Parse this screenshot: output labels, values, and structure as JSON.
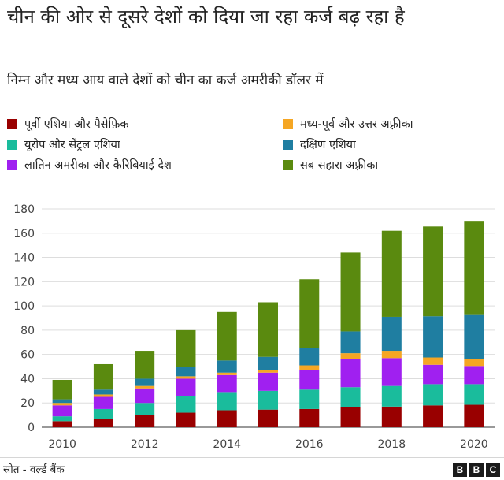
{
  "title": "चीन की ओर से दूसरे देशों को दिया जा रहा कर्ज बढ़ रहा है",
  "subtitle": "निम्न और मध्य आय वाले देशों को चीन का कर्ज अमरीकी डॉलर में",
  "source": "स्रोत - वर्ल्ड बैंक",
  "logo_letters": [
    "B",
    "B",
    "C"
  ],
  "chart_data": {
    "type": "bar",
    "stacked": true,
    "categories": [
      "2010",
      "2011",
      "2012",
      "2013",
      "2014",
      "2015",
      "2016",
      "2017",
      "2018",
      "2019",
      "2020"
    ],
    "x_tick_labels": [
      "2010",
      "2012",
      "2014",
      "2016",
      "2018",
      "2020"
    ],
    "ylim": [
      0,
      180
    ],
    "y_ticks": [
      0,
      20,
      40,
      60,
      80,
      100,
      120,
      140,
      160,
      180
    ],
    "grid": true,
    "legend_position": "top",
    "series": [
      {
        "name": "पूर्वी एशिया और पैसेफ़िक",
        "color": "#990000",
        "values": [
          5,
          7,
          10,
          12,
          14,
          14.5,
          15,
          16.5,
          17,
          18,
          18.5
        ]
      },
      {
        "name": "यूरोप और सेंट्रल एशिया",
        "color": "#1abc9c",
        "values": [
          4,
          8,
          10,
          14,
          15,
          15.5,
          16,
          16.5,
          17,
          17.5,
          17
        ]
      },
      {
        "name": "लातिन अमरीका और कैरिबियाई देश",
        "color": "#a020f0",
        "values": [
          9,
          10,
          12,
          14,
          14,
          15,
          16,
          23,
          23,
          16,
          15
        ]
      },
      {
        "name": "मध्य-पूर्व और उत्तर अफ़्रीका",
        "color": "#f5a623",
        "values": [
          2,
          2,
          2,
          2,
          2,
          2,
          4,
          5,
          6,
          6,
          6
        ]
      },
      {
        "name": "दक्षिण एशिया",
        "color": "#1f7ea1",
        "values": [
          3,
          4,
          6,
          8,
          10,
          11,
          14,
          18,
          28,
          34,
          36
        ]
      },
      {
        "name": "सब सहारा अफ़्रीका",
        "color": "#5a8a0f",
        "values": [
          16,
          21,
          23,
          30,
          40,
          45,
          57,
          65,
          71,
          74,
          77
        ]
      }
    ]
  }
}
